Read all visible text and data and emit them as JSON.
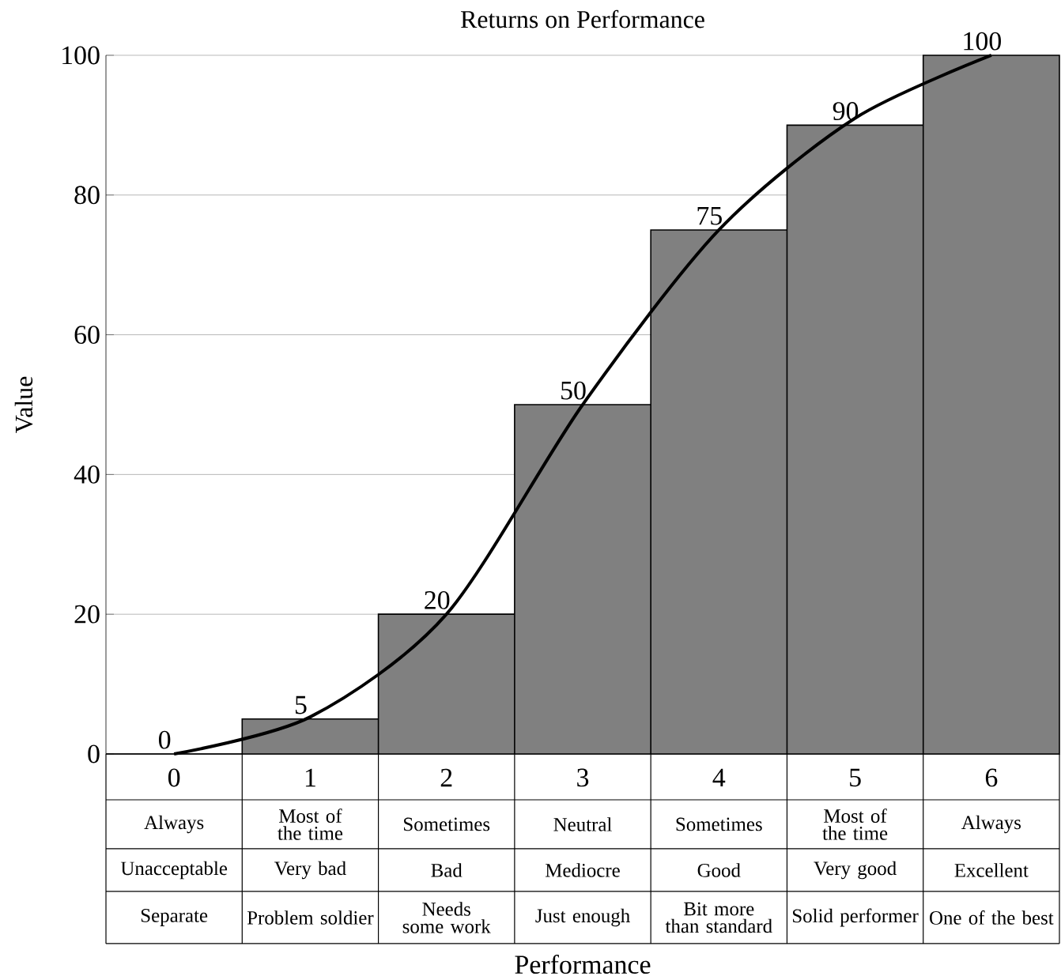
{
  "chart_data": {
    "type": "bar",
    "title": "Returns on Performance",
    "ylabel": "Value",
    "categories": [
      "0",
      "1",
      "2",
      "3",
      "4",
      "5",
      "6"
    ],
    "series": [
      {
        "color": "#808080",
        "values": [
          0,
          5,
          20,
          50,
          75,
          90,
          100
        ],
        "value_labels": [
          "0",
          "5",
          "20",
          "50",
          "75",
          "90",
          "100"
        ]
      },
      {
        "type": "line",
        "color": "#000000",
        "values": [
          0,
          5.3,
          20,
          50,
          75,
          91,
          100
        ]
      }
    ],
    "ylim": [
      0,
      100
    ],
    "yticks": [
      0,
      20,
      40,
      60,
      80,
      100
    ],
    "grid": "y",
    "annotations": [
      "Always",
      "Most of the time",
      "Sometimes",
      "Neutral",
      "Sometimes",
      "Most of the time",
      "Always",
      "Unacceptable",
      "Very bad",
      "Bad",
      "Mediocre",
      "Good",
      "Very good",
      "Excellent",
      "Separate",
      "Problem soldier",
      "Needs some work",
      "Just enough",
      "Bit more than standard",
      "Solid performer",
      "One of the best",
      "Performance"
    ]
  }
}
